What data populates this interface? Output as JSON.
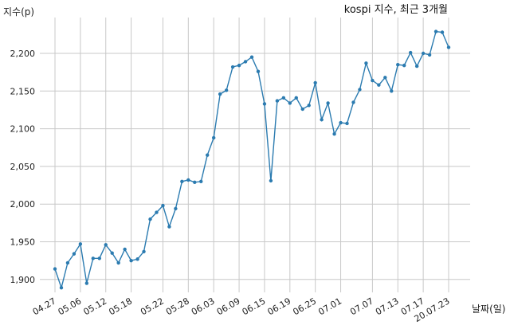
{
  "chart_data": {
    "type": "line",
    "title": "kospi 지수, 최근 3개월",
    "xlabel": "날짜(일)",
    "ylabel": "지수(p)",
    "ylim": [
      1880,
      2240
    ],
    "y_ticks": [
      1900,
      1950,
      2000,
      2050,
      2100,
      2150,
      2200
    ],
    "y_tick_labels": [
      "1,900",
      "1,950",
      "2,000",
      "2,050",
      "2,100",
      "2,150",
      "2,200"
    ],
    "x_tick_labels": [
      "04.27",
      "05.06",
      "05.12",
      "05.18",
      "05.22",
      "05.28",
      "06.03",
      "06.09",
      "06.15",
      "06.19",
      "06.25",
      "07.01",
      "07.07",
      "07.13",
      "07.17",
      "20.07.23"
    ],
    "grid": true,
    "line_color": "#2b7bb0",
    "series": [
      {
        "values": [
          1914,
          1889,
          1922,
          1934,
          1947,
          1895,
          1928,
          1928,
          1946,
          1935,
          1922,
          1940,
          1925,
          1927,
          1937,
          1980,
          1989,
          1998,
          1970,
          1994,
          2030,
          2032,
          2029,
          2030,
          2065,
          2088,
          2146,
          2151,
          2182,
          2184,
          2189,
          2195,
          2176,
          2133,
          2031,
          2137,
          2141,
          2134,
          2141,
          2126,
          2131,
          2161,
          2112,
          2134,
          2093,
          2108,
          2107,
          2135,
          2152,
          2187,
          2164,
          2158,
          2168,
          2150,
          2185,
          2184,
          2201,
          2183,
          2200,
          2198,
          2229,
          2228,
          2208
        ]
      }
    ]
  }
}
